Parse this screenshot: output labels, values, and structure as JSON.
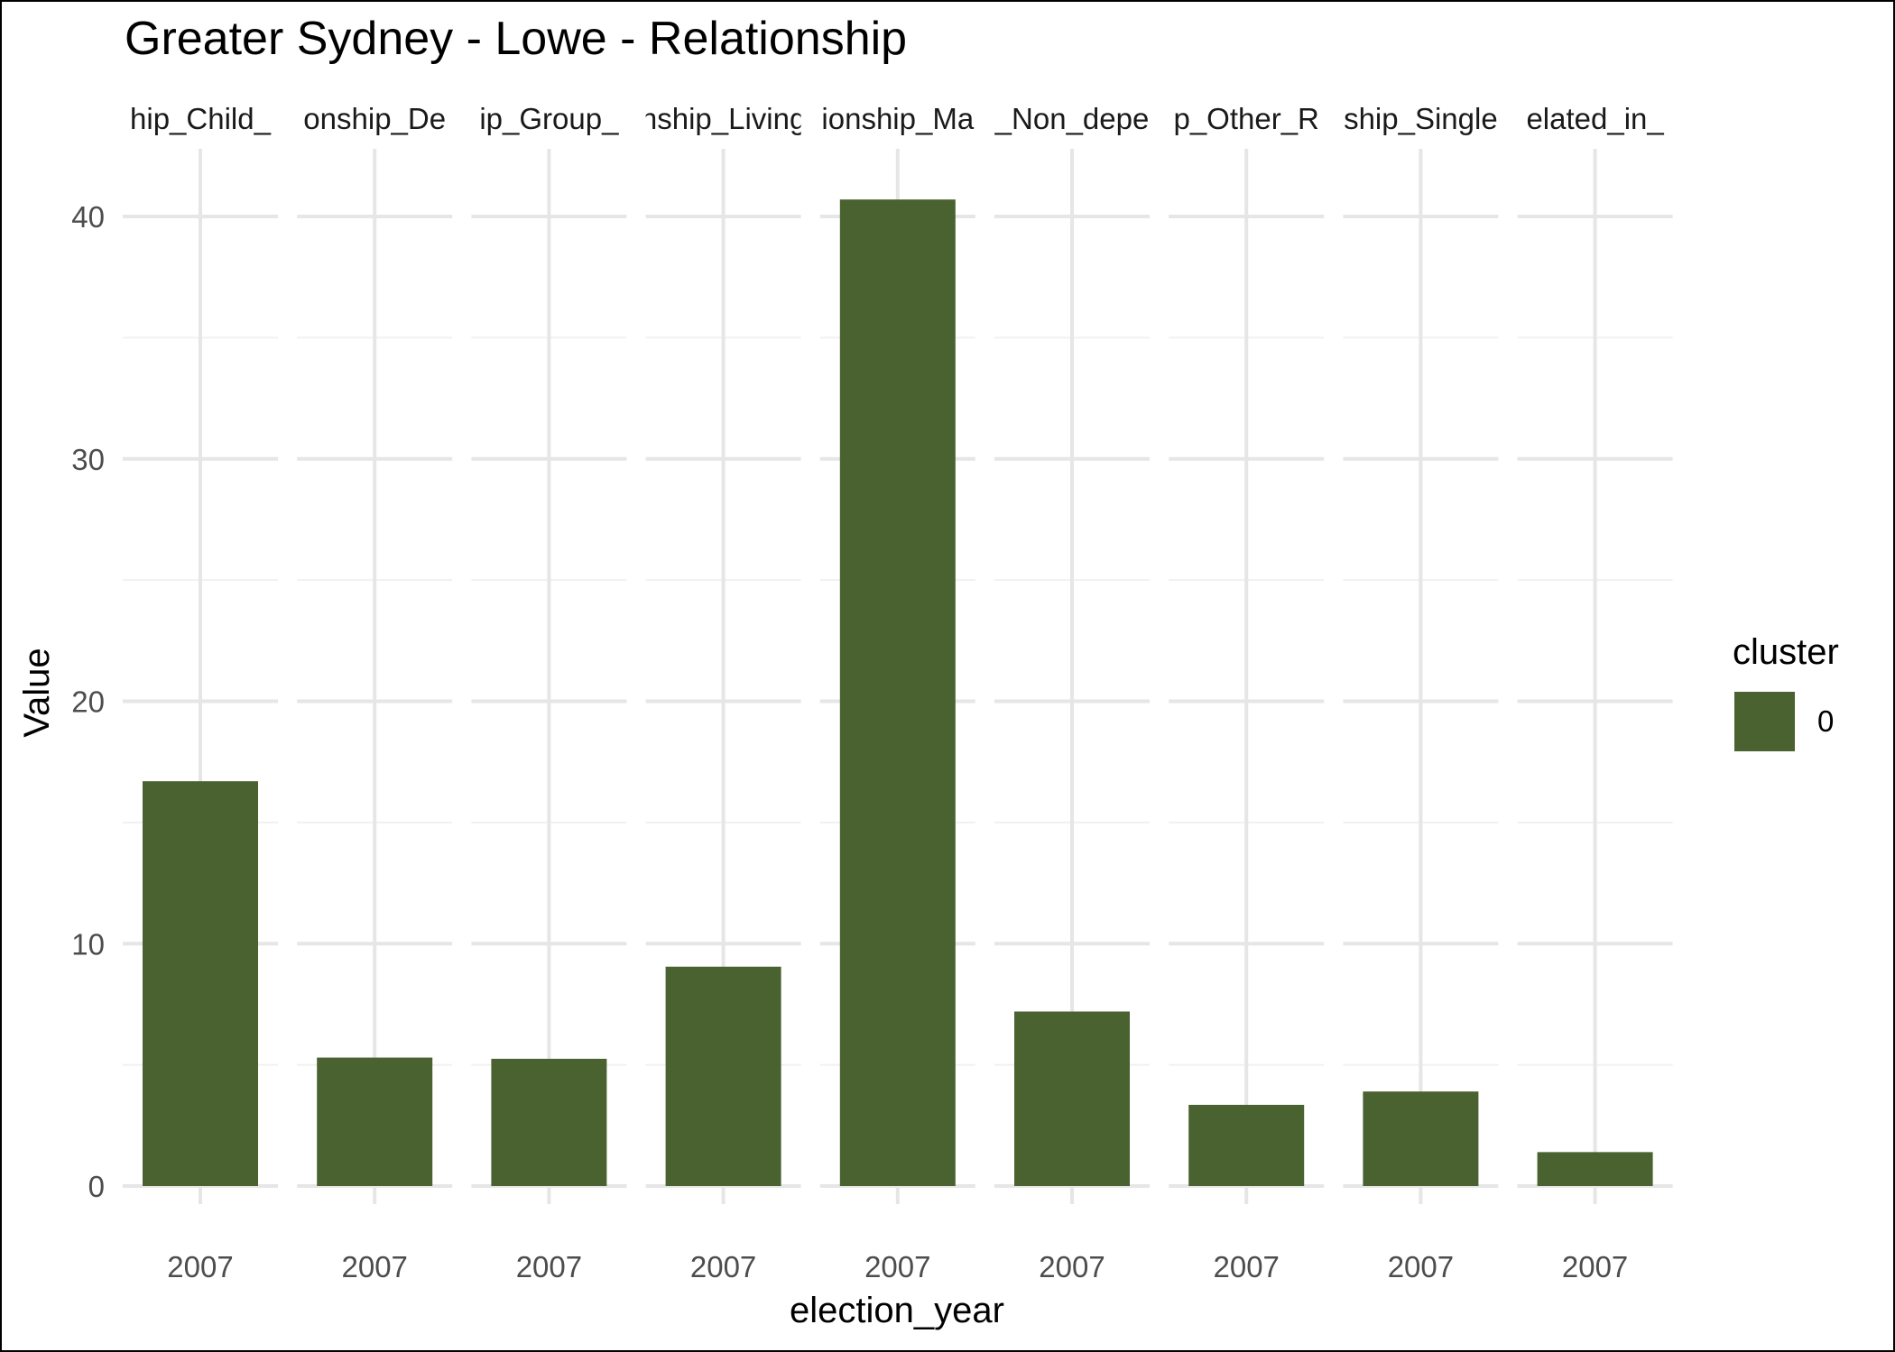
{
  "chart_data": {
    "type": "bar",
    "title": "Greater Sydney - Lowe - Relationship",
    "xlabel": "election_year",
    "ylabel": "Value",
    "ylim": [
      0,
      42
    ],
    "yticks": [
      0,
      10,
      20,
      30,
      40
    ],
    "grid": true,
    "bar_color": "#4a6130",
    "legend": {
      "title": "cluster",
      "placement": "right",
      "entries": [
        {
          "label": "0",
          "color": "#4a6130"
        }
      ]
    },
    "panels": [
      {
        "strip": "hip_Child_",
        "x": "2007",
        "value": 16.7
      },
      {
        "strip": "onship_De",
        "x": "2007",
        "value": 5.3
      },
      {
        "strip": "ip_Group_",
        "x": "2007",
        "value": 5.25
      },
      {
        "strip": "nship_Living",
        "x": "2007",
        "value": 9.05
      },
      {
        "strip": "ionship_Ma",
        "x": "2007",
        "value": 40.7
      },
      {
        "strip": "_Non_depe",
        "x": "2007",
        "value": 7.2
      },
      {
        "strip": "p_Other_R",
        "x": "2007",
        "value": 3.35
      },
      {
        "strip": "ship_Single",
        "x": "2007",
        "value": 3.9
      },
      {
        "strip": "elated_in_",
        "x": "2007",
        "value": 1.4
      }
    ]
  }
}
